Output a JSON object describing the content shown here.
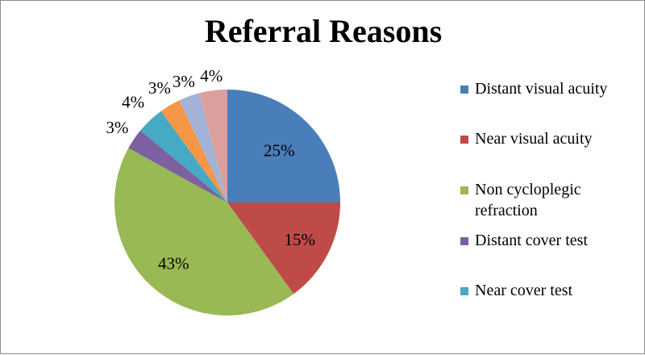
{
  "chart_data": {
    "type": "pie",
    "title": "Referral Reasons",
    "slices": [
      {
        "label": "Distant visual acuity",
        "value": 25,
        "display": "25%",
        "color": "#4a7ebb"
      },
      {
        "label": "Near visual acuity",
        "value": 15,
        "display": "15%",
        "color": "#be4b48"
      },
      {
        "label": "Non cycloplegic refraction",
        "value": 43,
        "display": "43%",
        "color": "#98b954"
      },
      {
        "label": "Distant cover test",
        "value": 3,
        "display": "3%",
        "color": "#7d60a0"
      },
      {
        "label": "Near cover test",
        "value": 4,
        "display": "4%",
        "color": "#46aac5"
      },
      {
        "label": "",
        "value": 3,
        "display": "3%",
        "color": "#f79646"
      },
      {
        "label": "",
        "value": 3,
        "display": "3%",
        "color": "#a2b3d7"
      },
      {
        "label": "",
        "value": 4,
        "display": "4%",
        "color": "#dba09e"
      }
    ],
    "legend": [
      {
        "label_lines": [
          "Distant visual acuity"
        ],
        "color": "#4a7ebb"
      },
      {
        "label_lines": [
          "Near visual acuity"
        ],
        "color": "#be4b48"
      },
      {
        "label_lines": [
          "Non cycloplegic",
          "refraction"
        ],
        "color": "#98b954"
      },
      {
        "label_lines": [
          "Distant cover test"
        ],
        "color": "#7d60a0"
      },
      {
        "label_lines": [
          "Near cover test"
        ],
        "color": "#46aac5"
      }
    ],
    "legend_placement": "right"
  }
}
